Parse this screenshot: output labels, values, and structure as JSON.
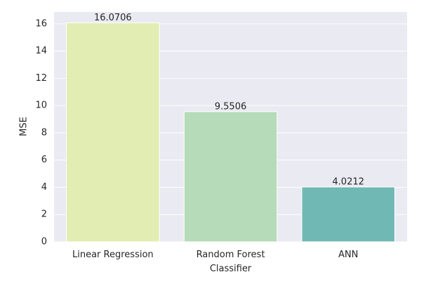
{
  "chart_data": {
    "type": "bar",
    "categories": [
      "Linear Regression",
      "Random Forest\nClassifier",
      "ANN"
    ],
    "values": [
      16.0706,
      9.5506,
      4.0212
    ],
    "colors": [
      "#e2edb3",
      "#b5dbb9",
      "#70b8b3"
    ],
    "ylabel": "MSE",
    "ylim": [
      0,
      16.87
    ],
    "yticks": [
      0,
      2,
      4,
      6,
      8,
      10,
      12,
      14,
      16
    ],
    "grid": true
  }
}
